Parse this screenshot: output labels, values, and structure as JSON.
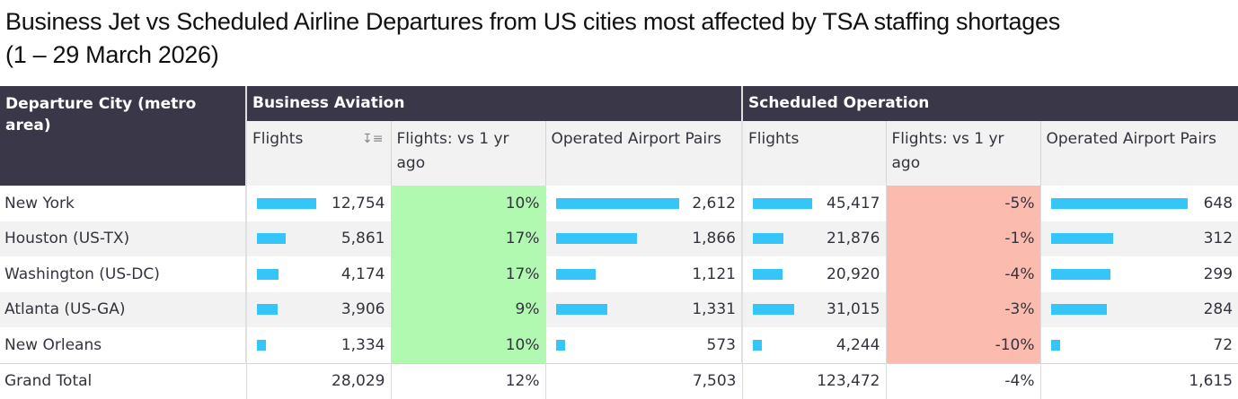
{
  "title": "Business Jet vs Scheduled Airline Departures from US cities most affected by TSA staffing shortages (1 – 29 March 2026)",
  "header": {
    "city": "Departure City (metro area)",
    "groups": [
      "Business Aviation",
      "Scheduled Operation"
    ],
    "sub": [
      "Flights",
      "Flights: vs 1 yr ago",
      "Operated Airport Pairs",
      "Flights",
      "Flights: vs 1 yr ago",
      "Operated Airport Pairs"
    ],
    "sort_icon": "sort-descending-icon"
  },
  "colors": {
    "bar": "#36c5f8",
    "positive": "#b1f8b1",
    "negative": "#fbbcaf",
    "header_bg": "#3a3848"
  },
  "chart_data": {
    "type": "table",
    "title": "Business Jet vs Scheduled Airline Departures from US cities most affected by TSA staffing shortages (1 – 29 March 2026)",
    "columns": [
      "Departure City (metro area)",
      "Business Aviation: Flights",
      "Business Aviation: Flights vs 1 yr ago",
      "Business Aviation: Operated Airport Pairs",
      "Scheduled Operation: Flights",
      "Scheduled Operation: Flights vs 1 yr ago",
      "Scheduled Operation: Operated Airport Pairs"
    ],
    "rows": [
      {
        "city": "New York",
        "biz_flights": 12754,
        "biz_flights_label": "12,754",
        "biz_yoy": "10%",
        "biz_pairs": 2612,
        "biz_pairs_label": "2,612",
        "sch_flights": 45417,
        "sch_flights_label": "45,417",
        "sch_yoy": "-5%",
        "sch_pairs": 648,
        "sch_pairs_label": "648"
      },
      {
        "city": "Houston (US-TX)",
        "biz_flights": 5861,
        "biz_flights_label": "5,861",
        "biz_yoy": "17%",
        "biz_pairs": 1866,
        "biz_pairs_label": "1,866",
        "sch_flights": 21876,
        "sch_flights_label": "21,876",
        "sch_yoy": "-1%",
        "sch_pairs": 312,
        "sch_pairs_label": "312"
      },
      {
        "city": "Washington (US-DC)",
        "biz_flights": 4174,
        "biz_flights_label": "4,174",
        "biz_yoy": "17%",
        "biz_pairs": 1121,
        "biz_pairs_label": "1,121",
        "sch_flights": 20920,
        "sch_flights_label": "20,920",
        "sch_yoy": "-4%",
        "sch_pairs": 299,
        "sch_pairs_label": "299"
      },
      {
        "city": "Atlanta (US-GA)",
        "biz_flights": 3906,
        "biz_flights_label": "3,906",
        "biz_yoy": "9%",
        "biz_pairs": 1331,
        "biz_pairs_label": "1,331",
        "sch_flights": 31015,
        "sch_flights_label": "31,015",
        "sch_yoy": "-3%",
        "sch_pairs": 284,
        "sch_pairs_label": "284"
      },
      {
        "city": "New Orleans",
        "biz_flights": 1334,
        "biz_flights_label": "1,334",
        "biz_yoy": "10%",
        "biz_pairs": 573,
        "biz_pairs_label": "573",
        "sch_flights": 4244,
        "sch_flights_label": "4,244",
        "sch_yoy": "-10%",
        "sch_pairs": 72,
        "sch_pairs_label": "72"
      }
    ],
    "total": {
      "city": "Grand Total",
      "biz_flights": "28,029",
      "biz_yoy": "12%",
      "biz_pairs": "7,503",
      "sch_flights": "123,472",
      "sch_yoy": "-4%",
      "sch_pairs": "1,615"
    }
  }
}
